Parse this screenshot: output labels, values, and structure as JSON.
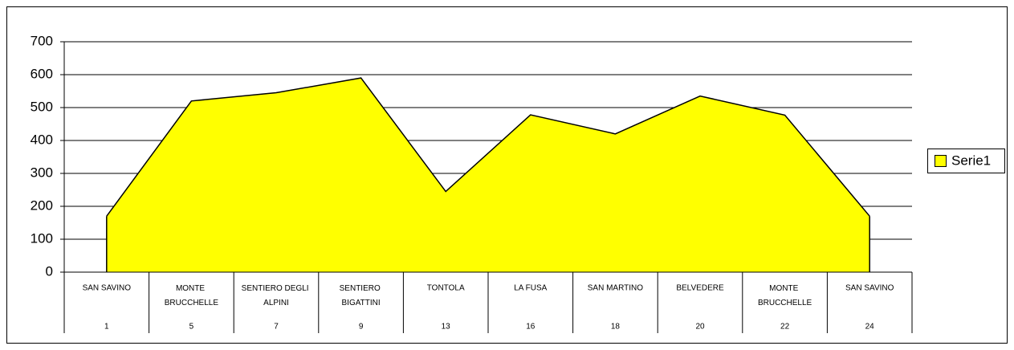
{
  "chart_data": {
    "type": "area",
    "categories": [
      "SAN SAVINO",
      "MONTE BRUCCHELLE",
      "SENTIERO DEGLI ALPINI",
      "SENTIERO BIGATTINI",
      "TONTOLA",
      "LA FUSA",
      "SAN MARTINO",
      "BELVEDERE",
      "MONTE BRUCCHELLE",
      "SAN SAVINO"
    ],
    "category_numbers": [
      1,
      5,
      7,
      9,
      13,
      16,
      18,
      20,
      22,
      24
    ],
    "series": [
      {
        "name": "Serie1",
        "color": "#ffff00",
        "values": [
          170,
          520,
          545,
          590,
          245,
          478,
          420,
          535,
          477,
          170
        ]
      }
    ],
    "ylim": [
      0,
      700
    ],
    "yticks": [
      0,
      100,
      200,
      300,
      400,
      500,
      600,
      700
    ],
    "grid": true,
    "legend": "right"
  }
}
